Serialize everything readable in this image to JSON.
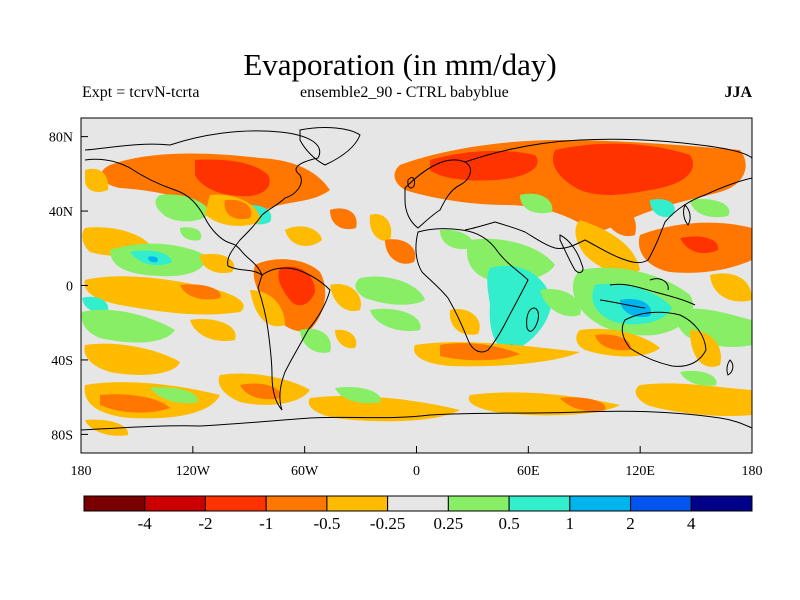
{
  "title": "Evaporation (in mm/day)",
  "subtitle_left": "Expt = tcrvN-tcrta",
  "subtitle_center": "ensemble2_90 - CTRL babyblue",
  "subtitle_right": "JJA",
  "map": {
    "projection": "cylindrical-equidistant",
    "lon_range": [
      -180,
      180
    ],
    "lat_range": [
      -90,
      90
    ],
    "background_color": "#e6e6e6",
    "coastline_color": "#000000",
    "lon_ticks": [
      {
        "value": -180,
        "label": "180"
      },
      {
        "value": -120,
        "label": "120W"
      },
      {
        "value": -60,
        "label": "60W"
      },
      {
        "value": 0,
        "label": "0"
      },
      {
        "value": 60,
        "label": "60E"
      },
      {
        "value": 120,
        "label": "120E"
      },
      {
        "value": 180,
        "label": "180"
      }
    ],
    "lat_ticks": [
      {
        "value": 80,
        "label": "80N"
      },
      {
        "value": 40,
        "label": "40N"
      },
      {
        "value": 0,
        "label": "0"
      },
      {
        "value": -40,
        "label": "40S"
      },
      {
        "value": -80,
        "label": "80S"
      }
    ]
  },
  "chart_data": {
    "type": "heatmap",
    "variable": "Evaporation difference",
    "units": "mm/day",
    "season": "JJA",
    "x_range": [
      -180,
      180
    ],
    "y_range": [
      -90,
      90
    ],
    "levels": [
      -4,
      -2,
      -1,
      -0.5,
      -0.25,
      0.25,
      0.5,
      1,
      2,
      4
    ],
    "colors": [
      "#7a0000",
      "#cc0000",
      "#ff3300",
      "#ff7700",
      "#ffbb00",
      "#e6e6e6",
      "#88ee66",
      "#33eecc",
      "#00b4ee",
      "#0055ee",
      "#000088"
    ],
    "regions": [
      {
        "lon": [
          -118,
          -95
        ],
        "lat": [
          56,
          74
        ],
        "level": "-1 to -2"
      },
      {
        "lon": [
          -95,
          -60
        ],
        "lat": [
          46,
          60
        ],
        "level": "-0.5 to -1"
      },
      {
        "lon": [
          0,
          130
        ],
        "lat": [
          50,
          75
        ],
        "level": "-0.5 to -1"
      },
      {
        "lon": [
          55,
          120
        ],
        "lat": [
          42,
          65
        ],
        "level": "-1 to -2"
      },
      {
        "lon": [
          -80,
          -55
        ],
        "lat": [
          -10,
          12
        ],
        "level": "-1 to -2"
      },
      {
        "lon": [
          -170,
          -130
        ],
        "lat": [
          -40,
          -24
        ],
        "level": "0.25 to 0.5"
      },
      {
        "lon": [
          -160,
          -130
        ],
        "lat": [
          6,
          18
        ],
        "level": "0.5 to 1"
      },
      {
        "lon": [
          25,
          60
        ],
        "lat": [
          -40,
          -5
        ],
        "level": "0.5 to 1"
      },
      {
        "lon": [
          90,
          130
        ],
        "lat": [
          -20,
          0
        ],
        "level": "1 to 2"
      },
      {
        "lon": [
          -110,
          -60
        ],
        "lat": [
          -70,
          -55
        ],
        "level": "-0.25 to -0.5"
      }
    ]
  }
}
